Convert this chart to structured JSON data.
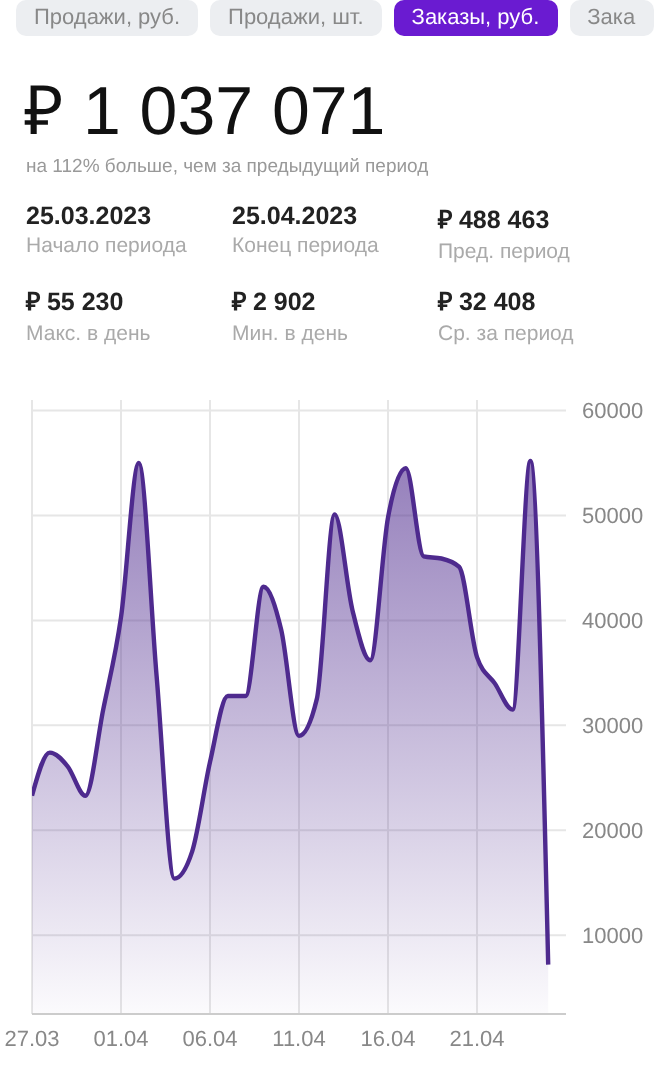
{
  "chart_data": {
    "type": "area",
    "title": "₽ 1 037 071",
    "subtitle": "на 112% больше, чем за предыдущий период",
    "annotations": [
      "Продажи, руб.",
      "Продажи, шт.",
      "Заказы, руб.",
      "Зака",
      "25.03.2023",
      "Начало периода",
      "25.04.2023",
      "Конец периода",
      "₽  488 463",
      "Пред. период",
      "₽ 55 230",
      "Макс. в день",
      "₽ 2 902",
      "Мин. в день",
      "₽ 32 408",
      "Ср. за период"
    ],
    "x": [
      "--03-27",
      "--03-28",
      "--03-29",
      "--03-30",
      "--03-31",
      "--04-01",
      "--04-02",
      "--04-03",
      "--04-04",
      "--04-05",
      "--04-06",
      "--04-07",
      "--04-08",
      "--04-09",
      "--04-10",
      "--04-11",
      "--04-12",
      "--04-13",
      "--04-14",
      "--04-15",
      "--04-16",
      "--04-17",
      "--04-18",
      "--04-19",
      "--04-20",
      "--04-21",
      "--04-22",
      "--04-23",
      "--04-24",
      "--04-25"
    ],
    "series": [
      {
        "color": "#4e2a8e",
        "values": [
          23300,
          27400,
          26100,
          23300,
          31500,
          40300,
          55000,
          34700,
          15400,
          18000,
          26500,
          32800,
          32800,
          43200,
          39100,
          29000,
          32500,
          50100,
          41000,
          36200,
          49800,
          54500,
          46100,
          45900,
          45100,
          36500,
          34000,
          31500,
          55200,
          7200
        ]
      }
    ],
    "xlim": [
      "--03-27",
      "--04-26"
    ],
    "xticks": [
      {
        "value": "--03-27",
        "label": "27.03"
      },
      {
        "value": "--04-01",
        "label": "01.04"
      },
      {
        "value": "--04-06",
        "label": "06.04"
      },
      {
        "value": "--04-11",
        "label": "11.04"
      },
      {
        "value": "--04-16",
        "label": "16.04"
      },
      {
        "value": "--04-21",
        "label": "21.04"
      }
    ],
    "ylim": [
      2500,
      61000
    ],
    "yticks": [
      10000,
      20000,
      30000,
      40000,
      50000,
      60000
    ],
    "grid": true,
    "legend": false
  }
}
